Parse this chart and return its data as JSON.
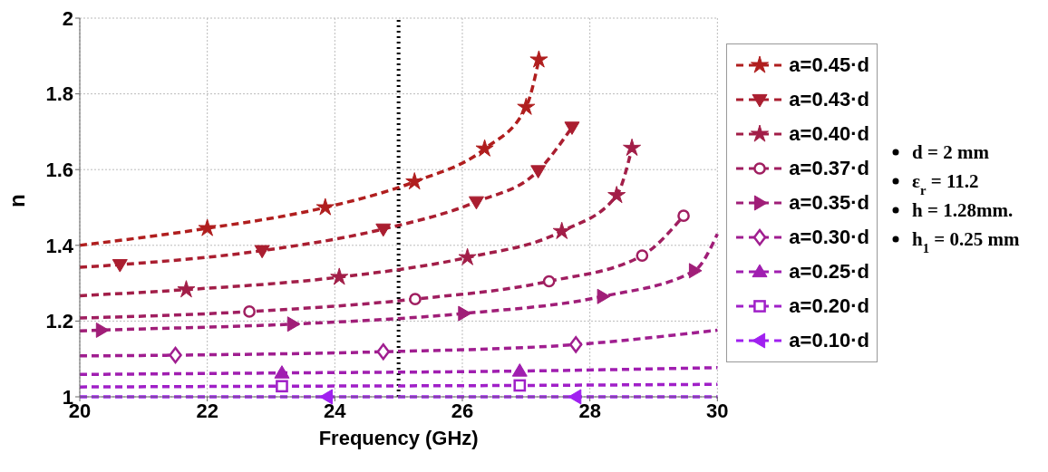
{
  "chart_data": {
    "type": "line",
    "xlabel": "Frequency (GHz)",
    "ylabel": "n",
    "xlim": [
      20,
      30
    ],
    "xticks": [
      20,
      22,
      24,
      26,
      28,
      30
    ],
    "ylim": [
      1,
      2
    ],
    "yticks": [
      1,
      1.2,
      1.4,
      1.6,
      1.8,
      2
    ],
    "grid": true,
    "legend": "right",
    "line_style": "dashed",
    "series": [
      {
        "name": "a=0.45·d",
        "color": "#b01e1e",
        "marker": "star",
        "x": [
          20,
          22,
          23.85,
          25.25,
          26.35,
          27,
          27.2
        ],
        "values": [
          1.4,
          1.445,
          1.5,
          1.568,
          1.655,
          1.765,
          1.89
        ]
      },
      {
        "name": "a=0.43·d",
        "color": "#aa1e30",
        "marker": "triangle-down",
        "x": [
          20,
          20.63,
          22.86,
          24.76,
          26.22,
          27.19,
          27.72
        ],
        "values": [
          1.342,
          1.349,
          1.386,
          1.443,
          1.515,
          1.597,
          1.712
        ]
      },
      {
        "name": "a=0.40·d",
        "color": "#a21e48",
        "marker": "star",
        "x": [
          20,
          21.67,
          24.07,
          26.08,
          27.56,
          28.42,
          28.66
        ],
        "values": [
          1.267,
          1.283,
          1.316,
          1.368,
          1.437,
          1.532,
          1.657
        ]
      },
      {
        "name": "a=0.37·d",
        "color": "#a01e60",
        "marker": "circle",
        "x": [
          20,
          22.66,
          25.26,
          27.36,
          28.82,
          29.47
        ],
        "values": [
          1.208,
          1.225,
          1.258,
          1.305,
          1.373,
          1.478
        ]
      },
      {
        "name": "a=0.35·d",
        "color": "#a01e78",
        "marker": "triangle-right",
        "x": [
          20,
          20.34,
          23.34,
          26.02,
          28.2,
          29.64,
          30
        ],
        "values": [
          1.174,
          1.176,
          1.192,
          1.22,
          1.265,
          1.333,
          1.43
        ]
      },
      {
        "name": "a=0.30·d",
        "color": "#a01e90",
        "marker": "diamond",
        "x": [
          20,
          21.5,
          24.76,
          27.78,
          30
        ],
        "values": [
          1.108,
          1.11,
          1.119,
          1.138,
          1.176
        ]
      },
      {
        "name": "a=0.25·d",
        "color": "#a01eb0",
        "marker": "triangle",
        "x": [
          20,
          23.17,
          26.9,
          30
        ],
        "values": [
          1.059,
          1.063,
          1.068,
          1.077
        ]
      },
      {
        "name": "a=0.20·d",
        "color": "#a020c8",
        "marker": "square",
        "x": [
          20,
          23.17,
          26.9,
          30
        ],
        "values": [
          1.026,
          1.028,
          1.03,
          1.033
        ]
      },
      {
        "name": "a=0.10·d",
        "color": "#a020f0",
        "marker": "triangle-left",
        "x": [
          20,
          23.88,
          27.78,
          30
        ],
        "values": [
          1,
          1,
          1,
          1
        ]
      }
    ],
    "ref_lines": [
      {
        "axis": "x",
        "value": 25,
        "color": "#000000",
        "line_style": "dotted"
      }
    ],
    "annotations": [
      "d = 2 mm",
      "ε$_{r}$ = 11.2",
      "h = 1.28mm.",
      "h$_{1}$ = 0.25 mm"
    ]
  }
}
